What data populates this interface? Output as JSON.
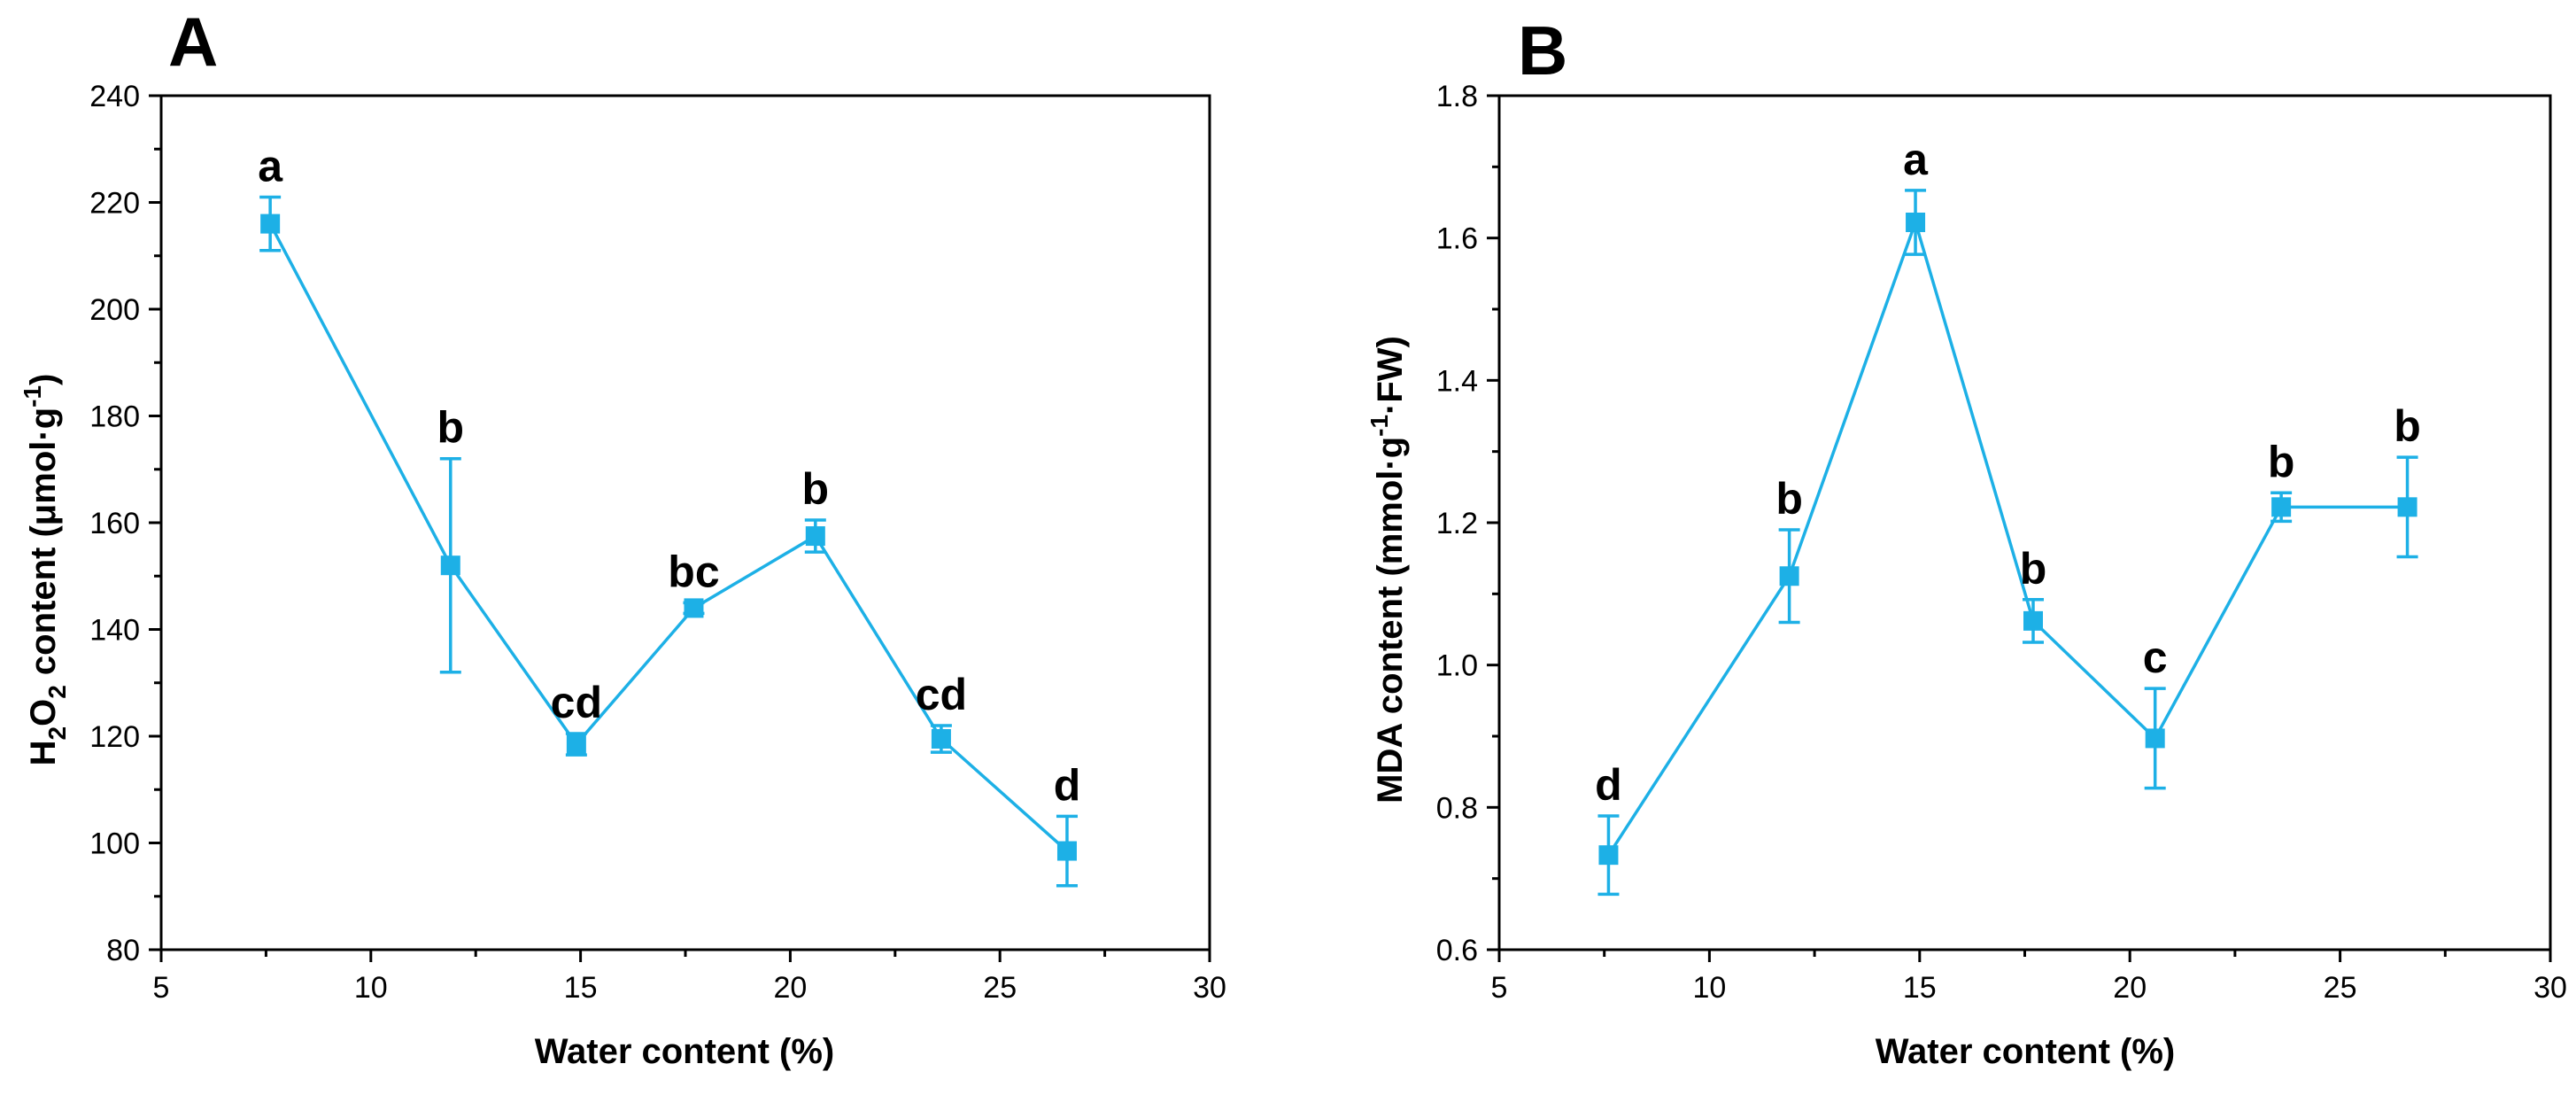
{
  "chart_data": [
    {
      "panel": "A",
      "type": "line",
      "xlabel": "Water content (%)",
      "ylabel": {
        "main": "H",
        "sub1": "2",
        "mid": "O",
        "sub2": "2",
        "rest": " content (μmol·g",
        "sup": "-1",
        "end": ")"
      },
      "xlim": [
        5,
        30
      ],
      "ylim": [
        80,
        240
      ],
      "xticks": [
        5,
        10,
        15,
        20,
        25,
        30
      ],
      "xtick_labels": [
        "5",
        "10",
        "15",
        "20",
        "25",
        "30"
      ],
      "yticks": [
        80,
        100,
        120,
        140,
        160,
        180,
        200,
        220,
        240
      ],
      "ytick_labels": [
        "80",
        "100",
        "120",
        "140",
        "160",
        "180",
        "200",
        "220",
        "240"
      ],
      "color": "#1DB0E6",
      "series": [
        {
          "name": "H2O2",
          "x": [
            7.6,
            11.9,
            14.9,
            17.7,
            20.6,
            23.6,
            26.6
          ],
          "y": [
            216,
            152,
            118.5,
            144,
            157.5,
            119.5,
            98.5
          ],
          "err": [
            5,
            20,
            2,
            1,
            3,
            2.5,
            6.5
          ],
          "labels": [
            "a",
            "b",
            "cd",
            "bc",
            "b",
            "cd",
            "d"
          ]
        }
      ]
    },
    {
      "panel": "B",
      "type": "line",
      "xlabel": "Water content (%)",
      "ylabel": {
        "rest": "MDA content (mmol·g",
        "sup": "-1",
        "end": "·FW)"
      },
      "xlim": [
        5,
        30
      ],
      "ylim": [
        0.6,
        1.8
      ],
      "xticks": [
        5,
        10,
        15,
        20,
        25,
        30
      ],
      "xtick_labels": [
        "5",
        "10",
        "15",
        "20",
        "25",
        "30"
      ],
      "yticks": [
        0.6,
        0.8,
        1.0,
        1.2,
        1.4,
        1.6,
        1.8
      ],
      "ytick_labels": [
        "0.6",
        "0.8",
        "1.0",
        "1.2",
        "1.4",
        "1.6",
        "1.8"
      ],
      "color": "#1DB0E6",
      "series": [
        {
          "name": "MDA",
          "x": [
            7.6,
            11.9,
            14.9,
            17.7,
            20.6,
            23.6,
            26.6
          ],
          "y": [
            0.733,
            1.125,
            1.622,
            1.062,
            0.897,
            1.222,
            1.222
          ],
          "err": [
            0.055,
            0.065,
            0.045,
            0.03,
            0.07,
            0.02,
            0.07
          ],
          "labels": [
            "d",
            "b",
            "a",
            "b",
            "c",
            "b",
            "b"
          ]
        }
      ]
    }
  ]
}
